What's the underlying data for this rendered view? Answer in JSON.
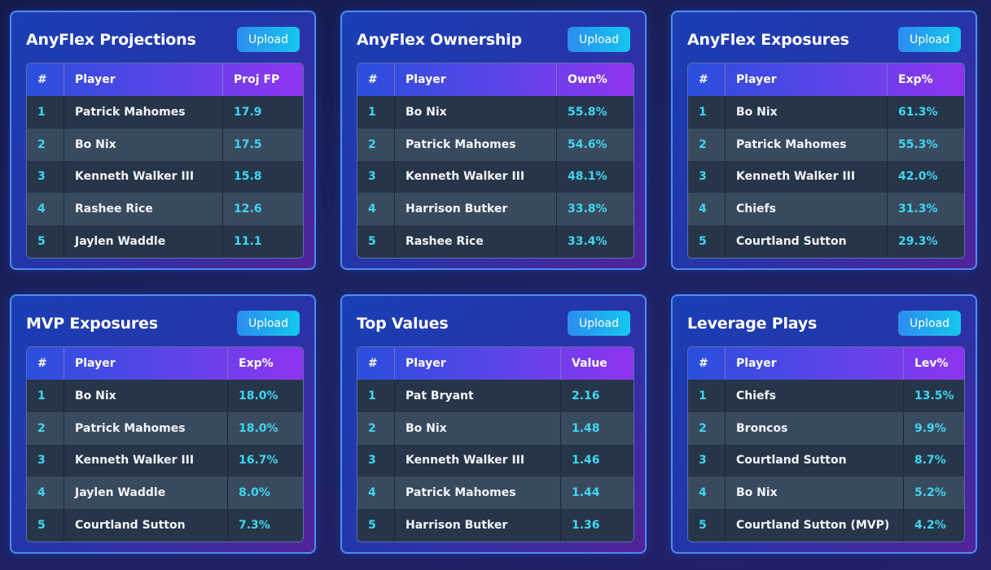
{
  "header_rank": "#",
  "header_player": "Player",
  "upload_label": "Upload",
  "cards": [
    {
      "title": "AnyFlex Projections",
      "value_header": "Proj FP",
      "rows": [
        {
          "rank": "1",
          "player": "Patrick Mahomes",
          "value": "17.9"
        },
        {
          "rank": "2",
          "player": "Bo Nix",
          "value": "17.5"
        },
        {
          "rank": "3",
          "player": "Kenneth Walker III",
          "value": "15.8"
        },
        {
          "rank": "4",
          "player": "Rashee Rice",
          "value": "12.6"
        },
        {
          "rank": "5",
          "player": "Jaylen Waddle",
          "value": "11.1"
        }
      ]
    },
    {
      "title": "AnyFlex Ownership",
      "value_header": "Own%",
      "rows": [
        {
          "rank": "1",
          "player": "Bo Nix",
          "value": "55.8%"
        },
        {
          "rank": "2",
          "player": "Patrick Mahomes",
          "value": "54.6%"
        },
        {
          "rank": "3",
          "player": "Kenneth Walker III",
          "value": "48.1%"
        },
        {
          "rank": "4",
          "player": "Harrison Butker",
          "value": "33.8%"
        },
        {
          "rank": "5",
          "player": "Rashee Rice",
          "value": "33.4%"
        }
      ]
    },
    {
      "title": "AnyFlex Exposures",
      "value_header": "Exp%",
      "rows": [
        {
          "rank": "1",
          "player": "Bo Nix",
          "value": "61.3%"
        },
        {
          "rank": "2",
          "player": "Patrick Mahomes",
          "value": "55.3%"
        },
        {
          "rank": "3",
          "player": "Kenneth Walker III",
          "value": "42.0%"
        },
        {
          "rank": "4",
          "player": "Chiefs",
          "value": "31.3%"
        },
        {
          "rank": "5",
          "player": "Courtland Sutton",
          "value": "29.3%"
        }
      ]
    },
    {
      "title": "MVP Exposures",
      "value_header": "Exp%",
      "rows": [
        {
          "rank": "1",
          "player": "Bo Nix",
          "value": "18.0%"
        },
        {
          "rank": "2",
          "player": "Patrick Mahomes",
          "value": "18.0%"
        },
        {
          "rank": "3",
          "player": "Kenneth Walker III",
          "value": "16.7%"
        },
        {
          "rank": "4",
          "player": "Jaylen Waddle",
          "value": "8.0%"
        },
        {
          "rank": "5",
          "player": "Courtland Sutton",
          "value": "7.3%"
        }
      ]
    },
    {
      "title": "Top Values",
      "value_header": "Value",
      "rows": [
        {
          "rank": "1",
          "player": "Pat Bryant",
          "value": "2.16"
        },
        {
          "rank": "2",
          "player": "Bo Nix",
          "value": "1.48"
        },
        {
          "rank": "3",
          "player": "Kenneth Walker III",
          "value": "1.46"
        },
        {
          "rank": "4",
          "player": "Patrick Mahomes",
          "value": "1.44"
        },
        {
          "rank": "5",
          "player": "Harrison Butker",
          "value": "1.36"
        }
      ]
    },
    {
      "title": "Leverage Plays",
      "value_header": "Lev%",
      "rows": [
        {
          "rank": "1",
          "player": "Chiefs",
          "value": "13.5%"
        },
        {
          "rank": "2",
          "player": "Broncos",
          "value": "9.9%"
        },
        {
          "rank": "3",
          "player": "Courtland Sutton",
          "value": "8.7%"
        },
        {
          "rank": "4",
          "player": "Bo Nix",
          "value": "5.2%"
        },
        {
          "rank": "5",
          "player": "Courtland Sutton (MVP)",
          "value": "4.2%"
        }
      ]
    }
  ]
}
